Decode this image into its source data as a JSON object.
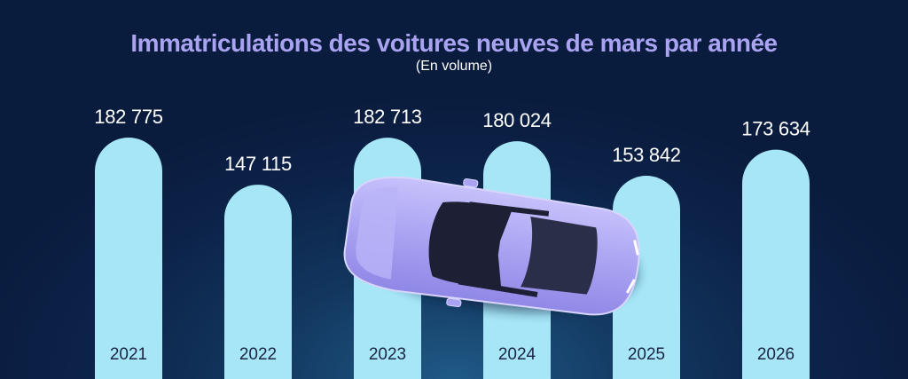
{
  "chart_data": {
    "type": "bar",
    "title": "Immatriculations des voitures neuves de mars par année",
    "subtitle": "(En volume)",
    "categories": [
      "2021",
      "2022",
      "2023",
      "2024",
      "2025",
      "2026"
    ],
    "values": [
      182775,
      147115,
      182713,
      180024,
      153842,
      173634
    ],
    "value_labels": [
      "182 775",
      "147 115",
      "182 713",
      "180 024",
      "153 842",
      "173 634"
    ],
    "grid": false,
    "colors": {
      "bar": "#a6e6f7",
      "title": "#a9a3f2",
      "background": "#0c2248",
      "car": "#a9a3f2"
    }
  },
  "illustration": {
    "name": "car-illustration"
  }
}
